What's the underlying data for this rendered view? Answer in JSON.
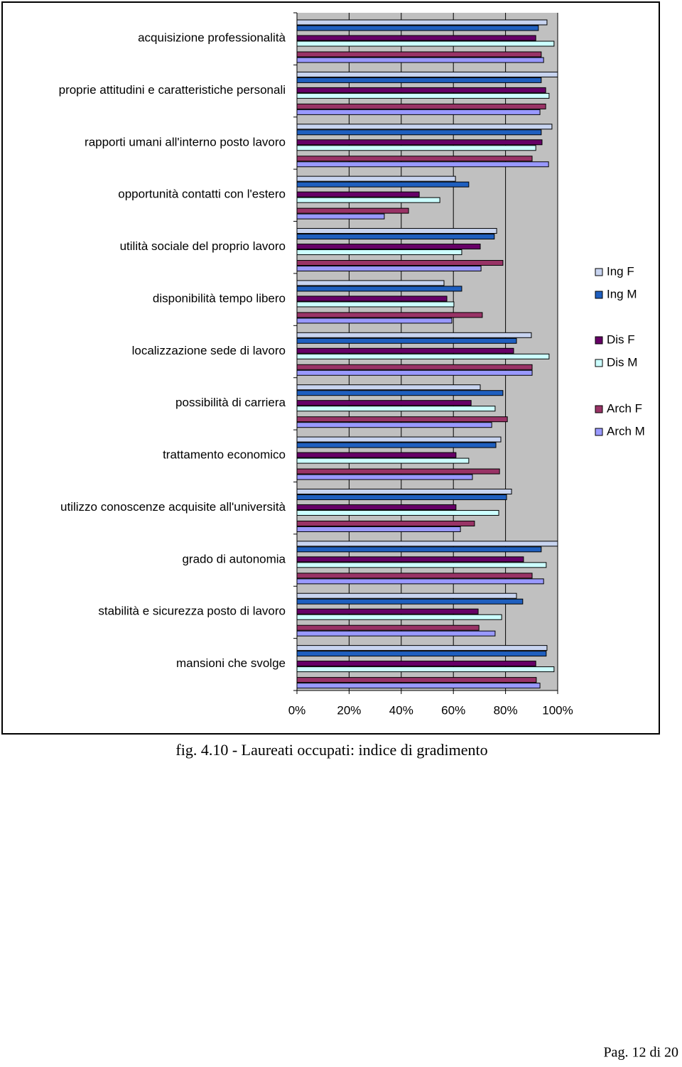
{
  "chart_data": {
    "type": "bar",
    "orientation": "horizontal",
    "categories": [
      "acquisizione professionalità",
      "proprie attitudini  e caratteristiche personali",
      "rapporti umani all'interno posto lavoro",
      "opportunità contatti con l'estero",
      "utilità sociale del proprio lavoro",
      "disponibilità tempo libero",
      "localizzazione sede di lavoro",
      "possibilità di carriera",
      "trattamento economico",
      "utilizzo conoscenze acquisite all'università",
      "grado di autonomia",
      "stabilità e sicurezza posto di lavoro",
      "mansioni che svolge"
    ],
    "series": [
      {
        "name": "Ing F",
        "color": "#c8d4f0",
        "values": [
          95.9,
          100,
          97.8,
          60.8,
          76.6,
          56.4,
          89.9,
          70.3,
          78.2,
          82.3,
          100,
          84.2,
          95.9
        ]
      },
      {
        "name": "Ing M",
        "color": "#1f5fbf",
        "values": [
          92.6,
          93.7,
          93.7,
          65.9,
          75.7,
          63.2,
          84.2,
          79.0,
          76.3,
          80.4,
          93.7,
          86.6,
          95.6
        ]
      },
      {
        "name": "Dis F",
        "color": "#660066",
        "values": [
          91.6,
          95.4,
          94.0,
          46.9,
          70.3,
          57.5,
          83.1,
          66.8,
          61.0,
          61.0,
          86.9,
          69.5,
          91.6
        ]
      },
      {
        "name": "Dis M",
        "color": "#ccffff",
        "values": [
          98.6,
          96.7,
          91.6,
          54.8,
          63.2,
          60.2,
          96.7,
          76.0,
          65.9,
          77.4,
          95.6,
          78.5,
          98.6
        ]
      },
      {
        "name": "Arch  F",
        "color": "#993366",
        "values": [
          93.7,
          95.4,
          90.2,
          42.8,
          79.0,
          71.1,
          90.2,
          80.7,
          77.7,
          68.1,
          90.2,
          69.8,
          91.8
        ]
      },
      {
        "name": "Arch M",
        "color": "#9999ff",
        "values": [
          94.6,
          93.2,
          96.5,
          33.5,
          70.6,
          59.4,
          90.2,
          74.7,
          67.3,
          62.7,
          94.6,
          76.0,
          93.2
        ]
      }
    ],
    "xlim": [
      0,
      100
    ],
    "xticks": [
      {
        "value": 0,
        "label": "0%"
      },
      {
        "value": 20,
        "label": "20%"
      },
      {
        "value": 40,
        "label": "40%"
      },
      {
        "value": 60,
        "label": "60%"
      },
      {
        "value": 80,
        "label": "80%"
      },
      {
        "value": 100,
        "label": "100%"
      }
    ],
    "grid": true,
    "legend": "right"
  },
  "caption": "fig. 4.10 -  Laureati occupati: indice di gradimento",
  "footer": "Pag. 12 di 20"
}
